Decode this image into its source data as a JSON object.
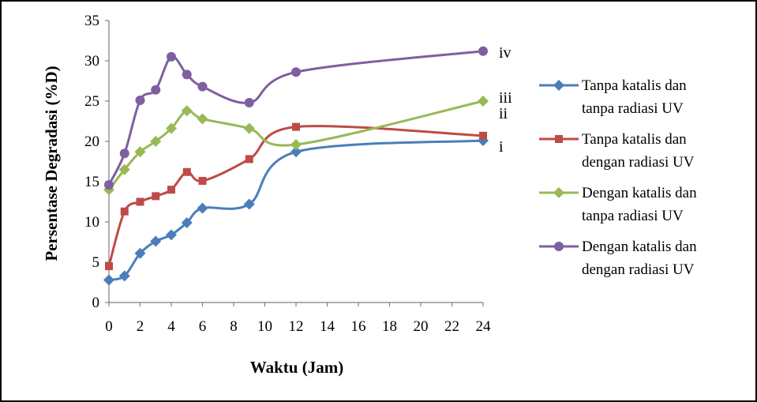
{
  "chart_data": {
    "type": "line",
    "xlabel": "Waktu (Jam)",
    "ylabel": "Persentase Degradasi (%D)",
    "xlim": [
      0,
      24
    ],
    "ylim": [
      0,
      35
    ],
    "x_ticks": [
      "0",
      "2",
      "4",
      "6",
      "8",
      "10",
      "12",
      "14",
      "16",
      "18",
      "20",
      "22",
      "24"
    ],
    "y_ticks": [
      "0",
      "5",
      "10",
      "15",
      "20",
      "25",
      "30",
      "35"
    ],
    "grid": false,
    "legend_position": "right",
    "series": [
      {
        "name_lines": [
          "Tanpa katalis dan",
          "tanpa radiasi UV"
        ],
        "color": "#4a7ebb",
        "marker": "diamond",
        "end_label": "i",
        "x": [
          0,
          1,
          2,
          3,
          4,
          5,
          6,
          9,
          12,
          24
        ],
        "y": [
          2.8,
          3.3,
          6.1,
          7.6,
          8.4,
          9.9,
          11.7,
          12.2,
          18.7,
          20.1
        ]
      },
      {
        "name_lines": [
          "Tanpa katalis dan",
          "dengan radiasi UV"
        ],
        "color": "#be4b48",
        "marker": "square",
        "end_label": "ii",
        "x": [
          0,
          1,
          2,
          3,
          4,
          5,
          6,
          9,
          12,
          24
        ],
        "y": [
          4.5,
          11.3,
          12.5,
          13.2,
          14.0,
          16.2,
          15.1,
          17.8,
          21.8,
          20.7
        ]
      },
      {
        "name_lines": [
          "Dengan katalis dan",
          "tanpa radiasi UV"
        ],
        "color": "#98b954",
        "marker": "diamond",
        "end_label": "iii",
        "x": [
          0,
          1,
          2,
          3,
          4,
          5,
          6,
          9,
          12,
          24
        ],
        "y": [
          14.0,
          16.5,
          18.7,
          20.0,
          21.6,
          23.8,
          22.8,
          21.6,
          19.6,
          25.0
        ]
      },
      {
        "name_lines": [
          "Dengan katalis dan",
          "dengan radiasi UV"
        ],
        "color": "#7d60a0",
        "marker": "circle",
        "end_label": "iv",
        "x": [
          0,
          1,
          2,
          3,
          4,
          5,
          6,
          9,
          12,
          24
        ],
        "y": [
          14.6,
          18.5,
          25.1,
          26.4,
          30.5,
          28.3,
          26.8,
          24.8,
          28.6,
          31.2
        ]
      }
    ]
  }
}
